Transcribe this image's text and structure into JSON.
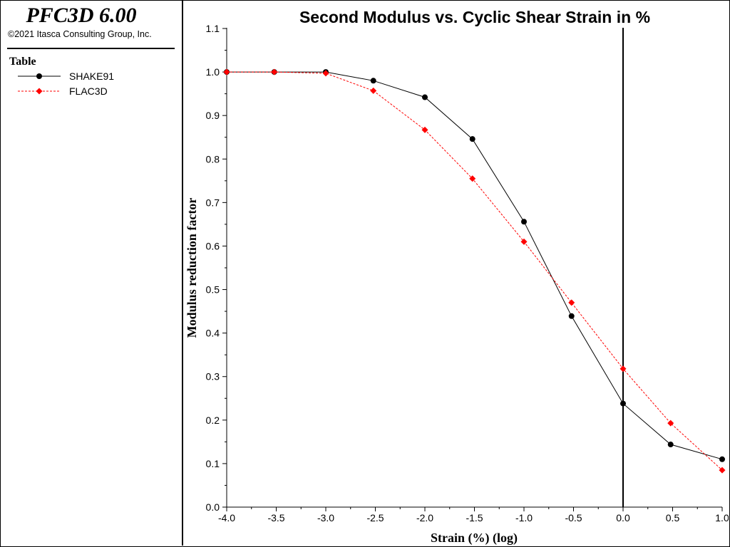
{
  "app": {
    "title": "PFC3D 6.00",
    "copyright": "©2021 Itasca Consulting Group, Inc."
  },
  "legend": {
    "title": "Table",
    "items": [
      {
        "label": "SHAKE91",
        "color": "#000000",
        "marker": "circle",
        "line": "solid"
      },
      {
        "label": "FLAC3D",
        "color": "#ff0000",
        "marker": "diamond",
        "line": "dashed"
      }
    ]
  },
  "chart_data": {
    "type": "line",
    "title": "Second Modulus vs. Cyclic Shear Strain in %",
    "xlabel": "Strain (%) (log)",
    "ylabel": "Modulus reduction factor",
    "xlim": [
      -4.0,
      1.0
    ],
    "ylim": [
      0.0,
      1.1
    ],
    "xticks": [
      "-4.0",
      "-3.5",
      "-3.0",
      "-2.5",
      "-2.0",
      "-1.5",
      "-1.0",
      "-0.5",
      "0.0",
      "0.5",
      "1.0"
    ],
    "yticks": [
      "0.0",
      "0.1",
      "0.2",
      "0.3",
      "0.4",
      "0.5",
      "0.6",
      "0.7",
      "0.8",
      "0.9",
      "1.0",
      "1.1"
    ],
    "reference_line_x": 0.0,
    "series": [
      {
        "name": "SHAKE91",
        "color": "#000000",
        "marker": "circle",
        "line": "solid",
        "x": [
          -4.0,
          -3.52,
          -3.0,
          -2.52,
          -2.0,
          -1.52,
          -1.0,
          -0.52,
          0.0,
          0.48,
          1.0
        ],
        "y": [
          1.0,
          1.0,
          1.0,
          0.98,
          0.942,
          0.846,
          0.656,
          0.439,
          0.238,
          0.144,
          0.11
        ]
      },
      {
        "name": "FLAC3D",
        "color": "#ff0000",
        "marker": "diamond",
        "line": "dashed",
        "x": [
          -4.0,
          -3.52,
          -3.0,
          -2.52,
          -2.0,
          -1.52,
          -1.0,
          -0.52,
          0.0,
          0.48,
          1.0
        ],
        "y": [
          1.0,
          1.0,
          0.997,
          0.957,
          0.867,
          0.755,
          0.61,
          0.47,
          0.318,
          0.193,
          0.085
        ]
      }
    ]
  }
}
